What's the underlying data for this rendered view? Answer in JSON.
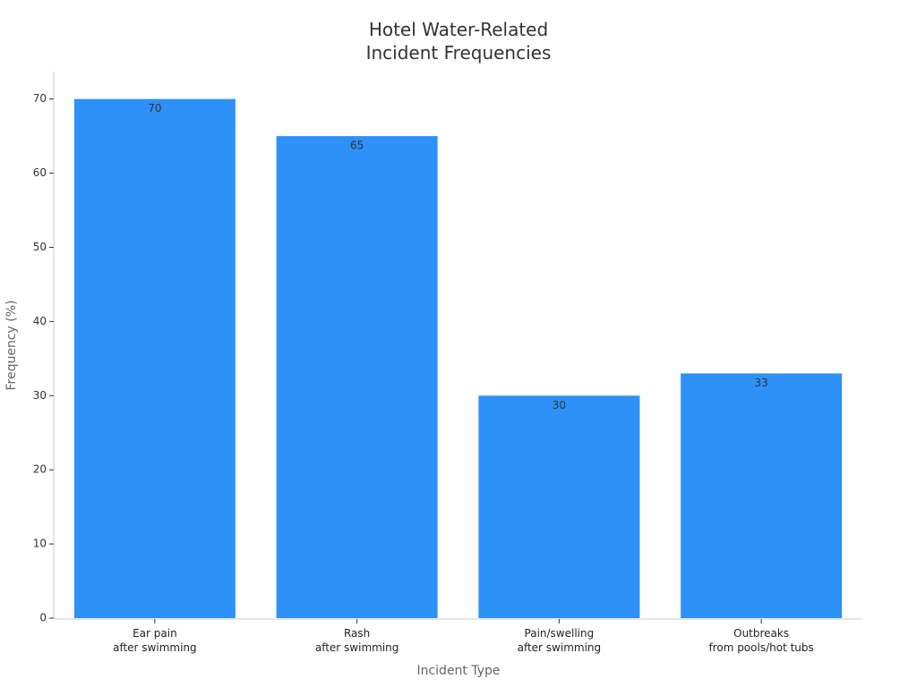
{
  "chart_data": {
    "type": "bar",
    "title": "Hotel Water-Related\nIncident Frequencies",
    "x_label": "Incident Type",
    "y_label": "Frequency (%)",
    "categories": [
      "Ear pain\nafter swimming",
      "Rash\nafter swimming",
      "Pain/swelling\nafter swimming",
      "Outbreaks\nfrom pools/hot tubs"
    ],
    "values": [
      70,
      65,
      30,
      33
    ],
    "color": "#2e91f7",
    "ylim": [
      0,
      73.7
    ],
    "yticks": [
      0,
      10,
      20,
      30,
      40,
      50,
      60,
      70
    ],
    "grid": false
  }
}
